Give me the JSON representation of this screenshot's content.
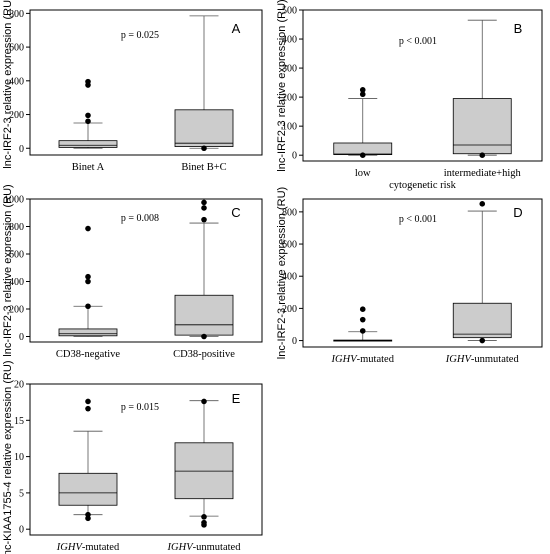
{
  "chart_data": [
    {
      "id": "A",
      "type": "box",
      "label": "A",
      "ylabel": "lnc-IRF2-3 relative expression (RU)",
      "xlabel": "",
      "pvalue": "p = 0.025",
      "ylim": [
        -40,
        820
      ],
      "yticks": [
        0,
        200,
        400,
        600,
        800
      ],
      "categories": [
        {
          "name": "Binet A",
          "italic_prefix": "",
          "q1": 5,
          "median": 18,
          "q3": 45,
          "whisker_low": 0,
          "whisker_high": 150,
          "outliers": [
            160,
            195,
            375,
            395
          ]
        },
        {
          "name": "Binet B+C",
          "italic_prefix": "",
          "q1": 10,
          "median": 30,
          "q3": 228,
          "whisker_low": 0,
          "whisker_high": 785,
          "outliers": [
            0
          ]
        }
      ]
    },
    {
      "id": "B",
      "type": "box",
      "label": "B",
      "ylabel": "lnc-IRF2-3 relative expression (RU)",
      "xlabel": "cytogenetic risk",
      "pvalue": "p < 0.001",
      "ylim": [
        -20,
        500
      ],
      "yticks": [
        0,
        100,
        200,
        300,
        400,
        500
      ],
      "categories": [
        {
          "name": "low",
          "italic_prefix": "",
          "q1": 2,
          "median": 4,
          "q3": 42,
          "whisker_low": 0,
          "whisker_high": 195,
          "outliers": [
            0,
            210,
            225
          ]
        },
        {
          "name": "intermediate+high",
          "italic_prefix": "",
          "q1": 5,
          "median": 35,
          "q3": 195,
          "whisker_low": 0,
          "whisker_high": 465,
          "outliers": [
            0
          ]
        }
      ]
    },
    {
      "id": "C",
      "type": "box",
      "label": "C",
      "ylabel": "lnc-IRF2-3 relative expression (RU)",
      "xlabel": "",
      "pvalue": "p = 0.008",
      "ylim": [
        -40,
        1000
      ],
      "yticks": [
        0,
        200,
        400,
        600,
        800,
        1000
      ],
      "categories": [
        {
          "name": "CD38-negative",
          "italic_prefix": "",
          "q1": 5,
          "median": 20,
          "q3": 55,
          "whisker_low": 0,
          "whisker_high": 220,
          "outliers": [
            220,
            400,
            435,
            785
          ]
        },
        {
          "name": "CD38-positive",
          "italic_prefix": "",
          "q1": 10,
          "median": 85,
          "q3": 300,
          "whisker_low": 0,
          "whisker_high": 825,
          "outliers": [
            0,
            850,
            935,
            975
          ]
        }
      ]
    },
    {
      "id": "D",
      "type": "box",
      "label": "D",
      "ylabel": "lnc-IRF2-3 relative expression (RU)",
      "xlabel": "",
      "pvalue": "p < 0.001",
      "ylim": [
        -40,
        880
      ],
      "yticks": [
        0,
        200,
        400,
        600,
        800
      ],
      "categories": [
        {
          "name": "-mutated",
          "italic_prefix": "IGHV",
          "q1": 0,
          "median": 0,
          "q3": 3,
          "whisker_low": 0,
          "whisker_high": 55,
          "outliers": [
            60,
            130,
            195
          ]
        },
        {
          "name": "-unmutated",
          "italic_prefix": "IGHV",
          "q1": 18,
          "median": 40,
          "q3": 232,
          "whisker_low": 0,
          "whisker_high": 805,
          "outliers": [
            0,
            850
          ]
        }
      ]
    },
    {
      "id": "E",
      "type": "box",
      "label": "E",
      "ylabel": "lnc-KIAA1755-4 relative expression (RU)",
      "xlabel": "",
      "pvalue": "p = 0.015",
      "ylim": [
        -0.8,
        20
      ],
      "yticks": [
        0,
        5,
        10,
        15,
        20
      ],
      "categories": [
        {
          "name": "-mutated",
          "italic_prefix": "IGHV",
          "q1": 3.3,
          "median": 5.0,
          "q3": 7.7,
          "whisker_low": 2.0,
          "whisker_high": 13.5,
          "outliers": [
            1.5,
            2.0,
            16.6,
            17.6
          ]
        },
        {
          "name": "-unmutated",
          "italic_prefix": "IGHV",
          "q1": 4.2,
          "median": 8.0,
          "q3": 11.9,
          "whisker_low": 1.8,
          "whisker_high": 17.7,
          "outliers": [
            0.6,
            0.9,
            1.7,
            17.6
          ]
        }
      ]
    }
  ],
  "colors": {
    "box_fill": "#cccccc",
    "stroke": "#000000",
    "whisker": "#555555",
    "background": "#ffffff"
  }
}
